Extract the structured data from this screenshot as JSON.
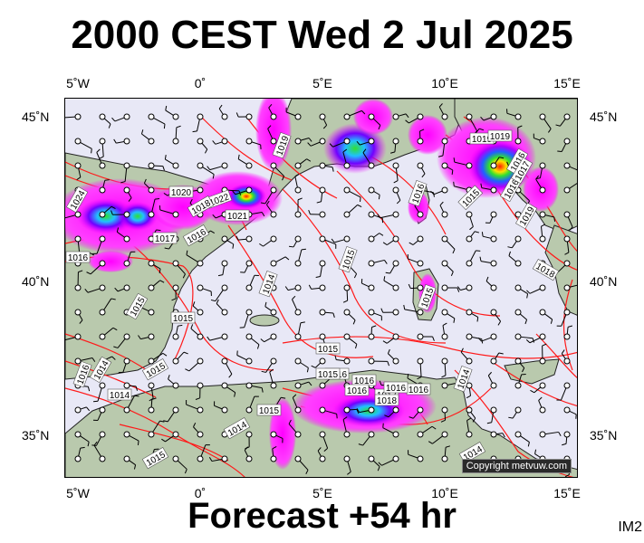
{
  "title": "2000 CEST Wed 2 Jul 2025",
  "footer": "Forecast +54 hr",
  "code": "IM2",
  "copyright": "Copyright metvuw.com",
  "lon_labels": [
    "5˚W",
    "0˚",
    "5˚E",
    "10˚E",
    "15˚E"
  ],
  "lat_labels": [
    "45˚N",
    "40˚N",
    "35˚N"
  ],
  "isobar_labels": [
    "1024",
    "1016",
    "1020",
    "1019",
    "1022",
    "1018",
    "1021",
    "1017",
    "1016",
    "1019",
    "1015",
    "1016",
    "1015",
    "1016",
    "1016",
    "1019",
    "1017",
    "1019",
    "1018",
    "1014",
    "1015",
    "1015",
    "1015",
    "1015",
    "1014",
    "1016",
    "1014",
    "1015",
    "1016",
    "1015",
    "1016",
    "1016",
    "1017",
    "1018",
    "1016",
    "1016",
    "1014",
    "1015",
    "1015",
    "1014",
    "1014"
  ],
  "colors": {
    "sea": "#e8e8f6",
    "land": "#b9c9ad",
    "isobar": "#ff1a1a",
    "rain_light": "#ff00ff",
    "rain_mid": "#2060ff",
    "rain_heavy": "#30e030",
    "rain_extreme": "#ff2000"
  }
}
